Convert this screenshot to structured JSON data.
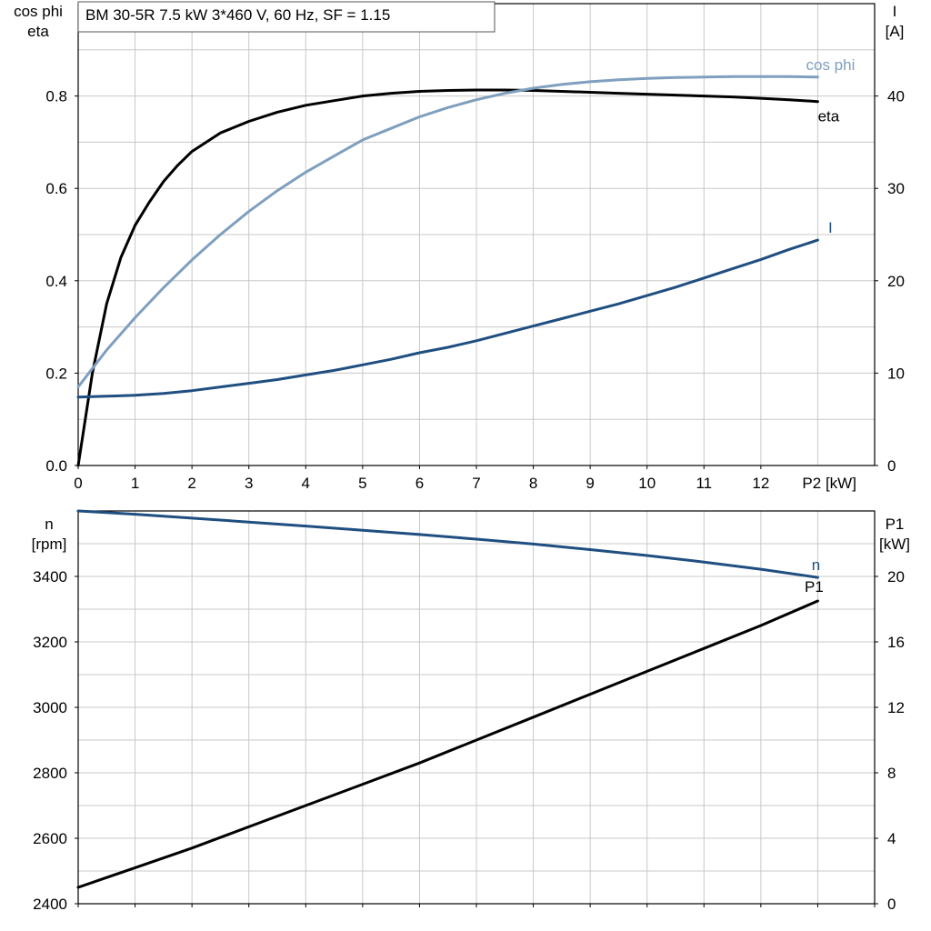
{
  "chart_data": [
    {
      "type": "line",
      "title": "BM 30-5R   7.5 kW   3*460 V, 60 Hz, SF = 1.15",
      "xlabel": "P2 [kW]",
      "x_ticks": [
        "0",
        "1",
        "2",
        "3",
        "4",
        "5",
        "6",
        "7",
        "8",
        "9",
        "10",
        "11",
        "12"
      ],
      "xlim": [
        0,
        14
      ],
      "ylabel_left": [
        "cos phi",
        "eta"
      ],
      "ylim_left": [
        0,
        1.0
      ],
      "y_ticks_left": [
        "0.0",
        "0.2",
        "0.4",
        "0.6",
        "0.8"
      ],
      "ylabel_right": [
        "I",
        "[A]"
      ],
      "ylim_right": [
        0,
        50
      ],
      "y_ticks_right": [
        "0",
        "10",
        "20",
        "30",
        "40"
      ],
      "grid": true,
      "series": [
        {
          "name": "eta",
          "axis": "left",
          "color": "#000000",
          "x": [
            0,
            0.25,
            0.5,
            0.75,
            1,
            1.25,
            1.5,
            1.75,
            2,
            2.5,
            3,
            3.5,
            4,
            4.5,
            5,
            5.5,
            6,
            6.5,
            7,
            7.5,
            8,
            8.5,
            9,
            9.5,
            10,
            10.5,
            11,
            11.5,
            12,
            12.5,
            13
          ],
          "y": [
            0,
            0.2,
            0.35,
            0.45,
            0.52,
            0.57,
            0.615,
            0.65,
            0.68,
            0.72,
            0.745,
            0.765,
            0.78,
            0.79,
            0.8,
            0.806,
            0.81,
            0.812,
            0.813,
            0.813,
            0.812,
            0.81,
            0.808,
            0.806,
            0.804,
            0.802,
            0.8,
            0.798,
            0.795,
            0.792,
            0.788
          ]
        },
        {
          "name": "cos phi",
          "axis": "left",
          "color": "#7f9fbf",
          "x": [
            0,
            0.5,
            1,
            1.5,
            2,
            2.5,
            3,
            3.5,
            4,
            4.5,
            5,
            5.5,
            6,
            6.5,
            7,
            7.5,
            8,
            8.5,
            9,
            9.5,
            10,
            10.5,
            11,
            11.5,
            12,
            12.5,
            13
          ],
          "y": [
            0.17,
            0.25,
            0.32,
            0.385,
            0.445,
            0.5,
            0.55,
            0.595,
            0.635,
            0.67,
            0.705,
            0.73,
            0.755,
            0.775,
            0.792,
            0.806,
            0.817,
            0.825,
            0.831,
            0.835,
            0.838,
            0.84,
            0.841,
            0.842,
            0.842,
            0.842,
            0.841
          ]
        },
        {
          "name": "I",
          "axis": "right",
          "color": "#1f4e80",
          "x": [
            0,
            0.5,
            1,
            1.5,
            2,
            2.5,
            3,
            3.5,
            4,
            4.5,
            5,
            5.5,
            6,
            6.5,
            7,
            7.5,
            8,
            8.5,
            9,
            9.5,
            10,
            10.5,
            11,
            11.5,
            12,
            12.5,
            13
          ],
          "y": [
            7.4,
            7.5,
            7.6,
            7.8,
            8.1,
            8.5,
            8.9,
            9.3,
            9.8,
            10.3,
            10.9,
            11.5,
            12.2,
            12.8,
            13.5,
            14.3,
            15.1,
            15.9,
            16.7,
            17.5,
            18.4,
            19.3,
            20.3,
            21.3,
            22.3,
            23.4,
            24.4
          ]
        }
      ]
    },
    {
      "type": "line",
      "xlim": [
        0,
        14
      ],
      "ylabel_left": [
        "n",
        "[rpm]"
      ],
      "ylim_left": [
        2400,
        3600
      ],
      "y_ticks_left": [
        "2400",
        "2600",
        "2800",
        "3000",
        "3200",
        "3400"
      ],
      "ylabel_right": [
        "P1",
        "[kW]"
      ],
      "ylim_right": [
        0,
        24
      ],
      "y_ticks_right": [
        "0",
        "4",
        "8",
        "12",
        "16",
        "20"
      ],
      "grid": true,
      "series": [
        {
          "name": "n",
          "axis": "left",
          "color": "#1f4e80",
          "x": [
            0,
            1,
            2,
            3,
            4,
            5,
            6,
            7,
            8,
            9,
            10,
            11,
            12,
            13
          ],
          "y": [
            3600,
            3590,
            3578,
            3566,
            3554,
            3541,
            3528,
            3514,
            3499,
            3482,
            3464,
            3444,
            3422,
            3397
          ]
        },
        {
          "name": "P1",
          "axis": "right",
          "color": "#000000",
          "x": [
            0,
            1,
            2,
            3,
            4,
            5,
            6,
            7,
            8,
            9,
            10,
            11,
            12,
            13
          ],
          "y": [
            1.0,
            2.2,
            3.4,
            4.7,
            6.0,
            7.3,
            8.6,
            10.0,
            11.4,
            12.8,
            14.2,
            15.6,
            17.0,
            18.5
          ]
        }
      ]
    }
  ]
}
